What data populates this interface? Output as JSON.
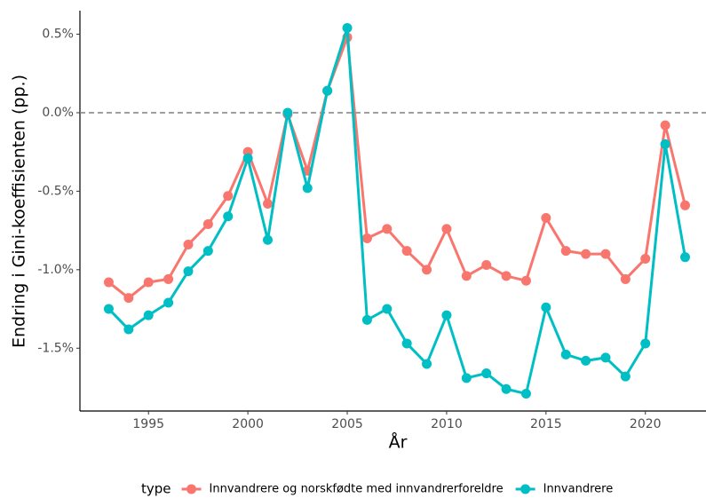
{
  "chart_data": {
    "type": "line",
    "x_label": "År",
    "y_label": "Endring i Gini-koeffisienten (pp.)",
    "legend_title": "type",
    "legend_position": "bottom",
    "x": [
      1993,
      1994,
      1995,
      1996,
      1997,
      1998,
      1999,
      2000,
      2001,
      2002,
      2003,
      2004,
      2005,
      2006,
      2007,
      2008,
      2009,
      2010,
      2011,
      2012,
      2013,
      2014,
      2015,
      2016,
      2017,
      2018,
      2019,
      2020,
      2021,
      2022
    ],
    "series": [
      {
        "name": "Innvandrere og norskfødte med innvandrerforeldre",
        "color": "#f8766d",
        "values": [
          -1.08,
          -1.18,
          -1.08,
          -1.06,
          -0.84,
          -0.71,
          -0.53,
          -0.25,
          -0.58,
          -0.01,
          -0.37,
          0.14,
          0.48,
          -0.8,
          -0.74,
          -0.88,
          -1.0,
          -0.74,
          -1.04,
          -0.97,
          -1.04,
          -1.07,
          -0.67,
          -0.88,
          -0.9,
          -0.9,
          -1.06,
          -0.93,
          -0.08,
          -0.59
        ]
      },
      {
        "name": "Innvandrere",
        "color": "#00bfc4",
        "values": [
          -1.25,
          -1.38,
          -1.29,
          -1.21,
          -1.01,
          -0.88,
          -0.66,
          -0.29,
          -0.81,
          0.0,
          -0.48,
          0.14,
          0.54,
          -1.32,
          -1.25,
          -1.47,
          -1.6,
          -1.29,
          -1.69,
          -1.66,
          -1.76,
          -1.79,
          -1.24,
          -1.54,
          -1.58,
          -1.56,
          -1.68,
          -1.47,
          -0.2,
          -0.92
        ]
      }
    ],
    "xlim": [
      1991.55,
      2023.05
    ],
    "xticks": [
      1995,
      2000,
      2005,
      2010,
      2015,
      2020
    ],
    "ylim": [
      -1.9,
      0.65
    ],
    "yticks": [
      {
        "value": 0.5,
        "label": "0.5%"
      },
      {
        "value": 0,
        "label": "0.0%"
      },
      {
        "value": -0.5,
        "label": "-0.5%"
      },
      {
        "value": -1,
        "label": "-1.0%"
      },
      {
        "value": -1.5,
        "label": "-1.5%"
      }
    ],
    "reference_line": 0,
    "grid": false
  }
}
